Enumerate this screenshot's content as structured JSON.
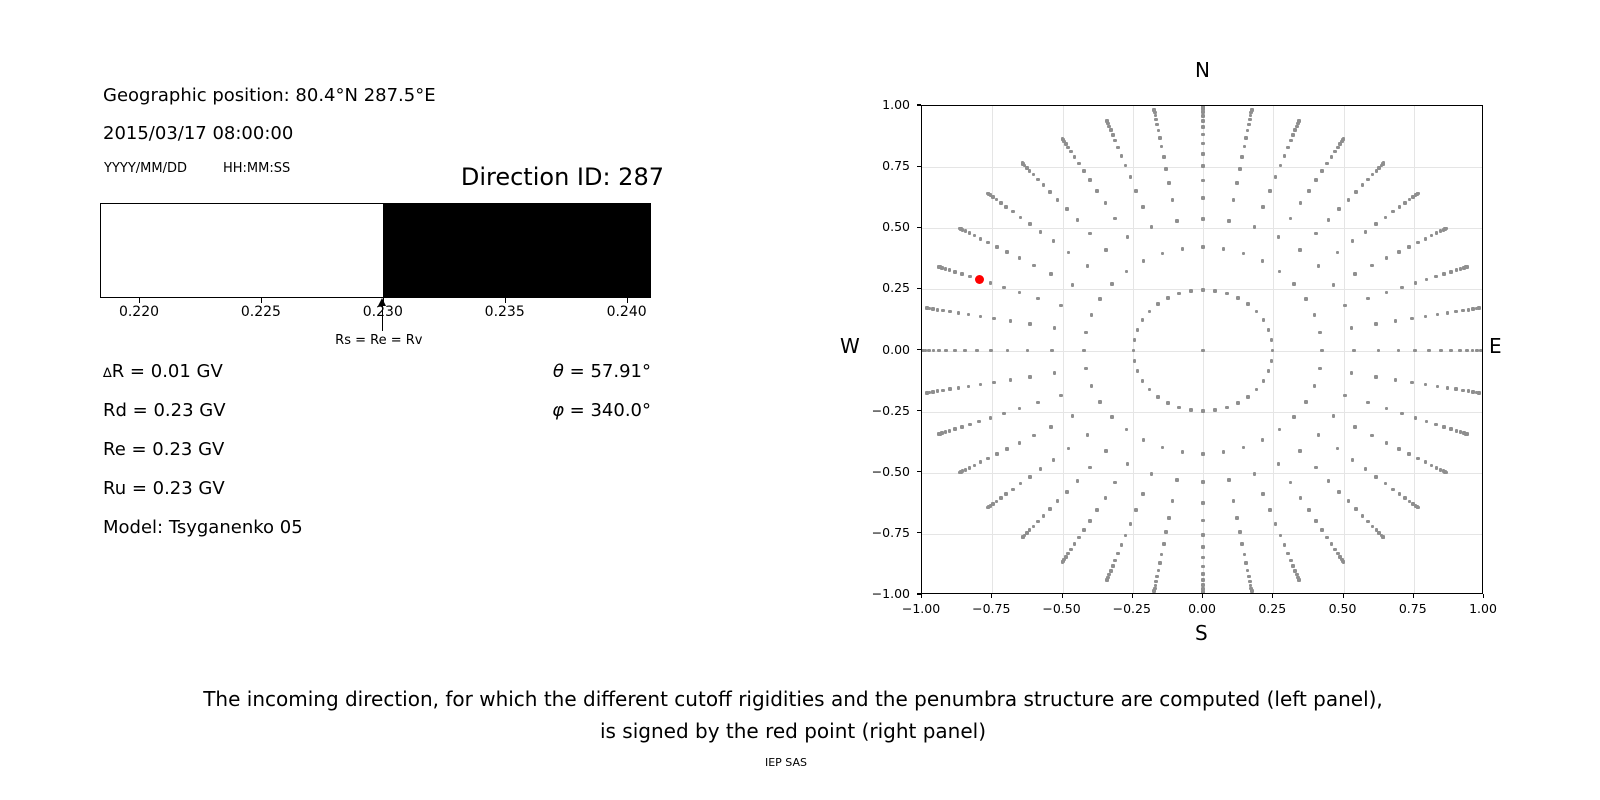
{
  "info_panel": {
    "geo_position": "Geographic position: 80.4°N 287.5°E",
    "datetime": "2015/03/17 08:00:00",
    "date_format": "YYYY/MM/DD",
    "time_format": "HH:MM:SS",
    "direction_id": "Direction ID: 287",
    "delta_symbol": "∆",
    "delta_r_rest": "R = 0.01 GV",
    "rd": "Rd = 0.23 GV",
    "re": "Re = 0.23 GV",
    "ru": "Ru = 0.23 GV",
    "model": "Model: Tsyganenko 05",
    "theta_symbol": "θ",
    "theta_rest": " = 57.91°",
    "phi_symbol": "φ",
    "phi_rest": " = 340.0°"
  },
  "chart_data": [
    {
      "type": "bar",
      "name": "penumbra-structure-bar",
      "x_min": 0.2184,
      "x_max": 0.241,
      "boundary_value": 0.23,
      "segments": [
        {
          "label": "allowed-white",
          "from": 0.2184,
          "to": 0.23,
          "color": "#ffffff"
        },
        {
          "label": "forbidden-black",
          "from": 0.23,
          "to": 0.241,
          "color": "#000000"
        }
      ],
      "tick_values": [
        0.22,
        0.225,
        0.23,
        0.235,
        0.24
      ],
      "tick_labels": [
        "0.220",
        "0.225",
        "0.230",
        "0.235",
        "0.240"
      ],
      "arrow_value": 0.23,
      "arrow_label": "Rs = Re = Rv",
      "unit": "GV"
    },
    {
      "type": "scatter",
      "name": "incoming-direction-skymap",
      "title": "N",
      "xlabel": "S",
      "left_label": "W",
      "right_label": "E",
      "xlim": [
        -1,
        1
      ],
      "ylim": [
        -1,
        1
      ],
      "xtick_values": [
        -1,
        -0.75,
        -0.5,
        -0.25,
        0,
        0.25,
        0.5,
        0.75,
        1
      ],
      "xtick_labels": [
        "−1.00",
        "−0.75",
        "−0.50",
        "−0.25",
        "0.00",
        "0.25",
        "0.50",
        "0.75",
        "1.00"
      ],
      "ytick_values": [
        1,
        0.75,
        0.5,
        0.25,
        0,
        -0.25,
        -0.5,
        -0.75,
        -1
      ],
      "ytick_labels": [
        "1.00",
        "0.75",
        "0.50",
        "0.25",
        "0.00",
        "−0.25",
        "−0.50",
        "−0.75",
        "−1.00"
      ],
      "grid": true,
      "grid_color": "#e5e5e5",
      "dot_color": "#8f8f8f",
      "azimuth_step_deg": 10,
      "azimuth_plot_offset_deg": -180,
      "zenith_ring_radii": [
        0.248,
        0.4227,
        0.5367,
        0.6242,
        0.6953,
        0.7545,
        0.8046,
        0.8472,
        0.8833,
        0.9138,
        0.9391,
        0.9596,
        0.9758,
        0.9877,
        0.9956,
        0.9995
      ],
      "center_dot": true,
      "red_point": {
        "x": -0.796,
        "y": 0.29,
        "theta_deg": 57.91,
        "phi_deg": 340.0,
        "color": "#ff0000"
      }
    }
  ],
  "caption": {
    "line1": "The incoming direction, for which the different cutoff rigidities and the penumbra structure are computed (left panel),",
    "line2": "is signed by the red point (right panel)",
    "credit": "IEP SAS"
  }
}
